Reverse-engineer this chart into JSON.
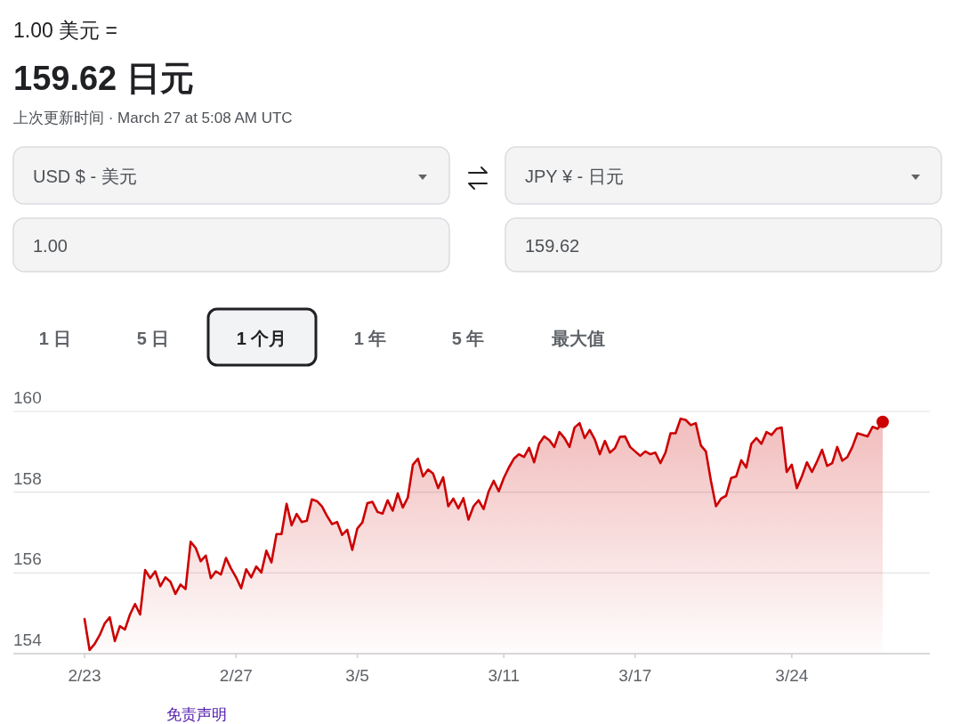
{
  "chart_data": {
    "type": "area",
    "title": "1.00 美元 =",
    "subtitle": "159.62 日元",
    "annotations": [
      "上次更新时间 · March 27 at 5:08 AM UTC",
      "USD $ - 美元",
      "JPY ¥ - 日元",
      "1.00",
      "159.62",
      "1 日",
      "5 日",
      "1 个月",
      "1 年",
      "5 年",
      "最大值",
      "免责声明"
    ],
    "categories": [
      "2/23",
      null,
      null,
      null,
      null,
      null,
      null,
      null,
      null,
      null,
      null,
      null,
      null,
      null,
      null,
      null,
      null,
      null,
      null,
      null,
      null,
      null,
      null,
      null,
      null,
      null,
      null,
      null,
      null,
      null,
      "2/27",
      null,
      null,
      null,
      null,
      null,
      null,
      null,
      null,
      null,
      null,
      null,
      null,
      null,
      null,
      null,
      null,
      null,
      null,
      null,
      null,
      null,
      null,
      null,
      "3/5",
      null,
      null,
      null,
      null,
      null,
      null,
      null,
      null,
      null,
      null,
      null,
      null,
      null,
      null,
      null,
      null,
      null,
      null,
      null,
      null,
      null,
      null,
      null,
      null,
      null,
      null,
      null,
      null,
      "3/11",
      null,
      null,
      null,
      null,
      null,
      null,
      null,
      null,
      null,
      null,
      null,
      null,
      null,
      null,
      null,
      null,
      null,
      null,
      null,
      null,
      null,
      null,
      null,
      null,
      null,
      "3/17",
      null,
      null,
      null,
      null,
      null,
      null,
      null,
      null,
      null,
      null,
      null,
      null,
      null,
      null,
      null,
      null,
      null,
      null,
      null,
      null,
      null,
      null,
      null,
      null,
      null,
      null,
      null,
      null,
      null,
      null,
      "3/24",
      null,
      null,
      null,
      null,
      null,
      null,
      null,
      null,
      null,
      null,
      null,
      null,
      null,
      null,
      null,
      null,
      null,
      null
    ],
    "ylim": [
      154,
      160
    ],
    "yticks": [
      154,
      156,
      158,
      160
    ],
    "grid": "y",
    "series": [
      {
        "color": "#cc0000",
        "marker": "none",
        "values": [
          154.86,
          154.09,
          154.24,
          154.46,
          154.75,
          154.9,
          154.31,
          154.68,
          154.6,
          154.97,
          155.23,
          154.97,
          156.07,
          155.87,
          156.04,
          155.67,
          155.89,
          155.78,
          155.48,
          155.71,
          155.6,
          156.77,
          156.62,
          156.29,
          156.43,
          155.87,
          156.04,
          155.96,
          156.37,
          156.11,
          155.89,
          155.62,
          156.09,
          155.89,
          156.16,
          156.01,
          156.55,
          156.26,
          156.96,
          156.96,
          157.71,
          157.18,
          157.46,
          157.26,
          157.29,
          157.82,
          157.78,
          157.65,
          157.41,
          157.21,
          157.26,
          156.94,
          157.07,
          156.57,
          157.1,
          157.25,
          157.73,
          157.76,
          157.51,
          157.47,
          157.8,
          157.54,
          157.97,
          157.62,
          157.87,
          158.68,
          158.83,
          158.39,
          158.56,
          158.46,
          158.1,
          158.37,
          157.65,
          157.84,
          157.6,
          157.85,
          157.32,
          157.65,
          157.8,
          157.58,
          158.02,
          158.28,
          158.02,
          158.35,
          158.61,
          158.83,
          158.94,
          158.87,
          159.1,
          158.74,
          159.2,
          159.38,
          159.29,
          159.12,
          159.49,
          159.34,
          159.12,
          159.6,
          159.71,
          159.34,
          159.54,
          159.31,
          158.94,
          159.27,
          158.98,
          159.09,
          159.37,
          159.38,
          159.12,
          159.01,
          158.9,
          159.01,
          158.94,
          158.98,
          158.72,
          158.98,
          159.46,
          159.46,
          159.82,
          159.79,
          159.66,
          159.71,
          159.16,
          159.01,
          158.28,
          157.65,
          157.84,
          157.91,
          158.35,
          158.39,
          158.79,
          158.61,
          159.2,
          159.34,
          159.2,
          159.49,
          159.42,
          159.57,
          159.6,
          158.5,
          158.68,
          158.1,
          158.39,
          158.74,
          158.5,
          158.76,
          159.05,
          158.65,
          158.72,
          159.12,
          158.78,
          158.87,
          159.12,
          159.46,
          159.42,
          159.38,
          159.62,
          159.57,
          159.74
        ]
      },
      {
        "type": "scatter",
        "color": "#cc0000",
        "marker": "circle",
        "values": [
          null,
          null,
          null,
          null,
          null,
          null,
          null,
          null,
          null,
          null,
          null,
          null,
          null,
          null,
          null,
          null,
          null,
          null,
          null,
          null,
          null,
          null,
          null,
          null,
          null,
          null,
          null,
          null,
          null,
          null,
          null,
          null,
          null,
          null,
          null,
          null,
          null,
          null,
          null,
          null,
          null,
          null,
          null,
          null,
          null,
          null,
          null,
          null,
          null,
          null,
          null,
          null,
          null,
          null,
          null,
          null,
          null,
          null,
          null,
          null,
          null,
          null,
          null,
          null,
          null,
          null,
          null,
          null,
          null,
          null,
          null,
          null,
          null,
          null,
          null,
          null,
          null,
          null,
          null,
          null,
          null,
          null,
          null,
          null,
          null,
          null,
          null,
          null,
          null,
          null,
          null,
          null,
          null,
          null,
          null,
          null,
          null,
          null,
          null,
          null,
          null,
          null,
          null,
          null,
          null,
          null,
          null,
          null,
          null,
          null,
          null,
          null,
          null,
          null,
          null,
          null,
          null,
          null,
          null,
          null,
          null,
          null,
          null,
          null,
          null,
          null,
          null,
          null,
          null,
          null,
          null,
          null,
          null,
          null,
          null,
          null,
          null,
          null,
          null,
          null,
          null,
          null,
          null,
          null,
          null,
          null,
          null,
          null,
          null,
          null,
          null,
          null,
          null,
          null,
          null,
          null,
          null,
          null,
          159.74
        ]
      }
    ]
  }
}
